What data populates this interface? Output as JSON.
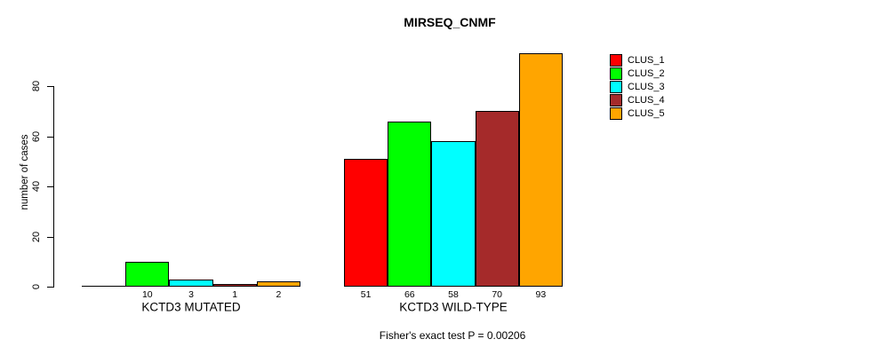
{
  "title": "MIRSEQ_CNMF",
  "footer": "Fisher's exact test P = 0.00206",
  "y_axis": {
    "label": "number of cases",
    "ticks": [
      "0",
      "20",
      "40",
      "60",
      "80"
    ]
  },
  "chart_data": {
    "type": "bar",
    "title": "MIRSEQ_CNMF",
    "xlabel": "",
    "ylabel": "number of cases",
    "ylim": [
      0,
      93
    ],
    "yticks": [
      0,
      20,
      40,
      60,
      80
    ],
    "grid": false,
    "legend_position": "right",
    "categories": [
      "KCTD3 MUTATED",
      "KCTD3 WILD-TYPE"
    ],
    "series": [
      {
        "name": "CLUS_1",
        "color": "#ff0000",
        "values": [
          0,
          51
        ]
      },
      {
        "name": "CLUS_2",
        "color": "#00ff00",
        "values": [
          10,
          66
        ]
      },
      {
        "name": "CLUS_3",
        "color": "#00ffff",
        "values": [
          3,
          58
        ]
      },
      {
        "name": "CLUS_4",
        "color": "#a52a2a",
        "values": [
          1,
          70
        ]
      },
      {
        "name": "CLUS_5",
        "color": "#ffa500",
        "values": [
          2,
          93
        ]
      }
    ],
    "bar_value_labels": [
      [
        "",
        "10",
        "3",
        "1",
        "2"
      ],
      [
        "51",
        "66",
        "58",
        "70",
        "93"
      ]
    ],
    "annotation": "Fisher's exact test P = 0.00206"
  }
}
